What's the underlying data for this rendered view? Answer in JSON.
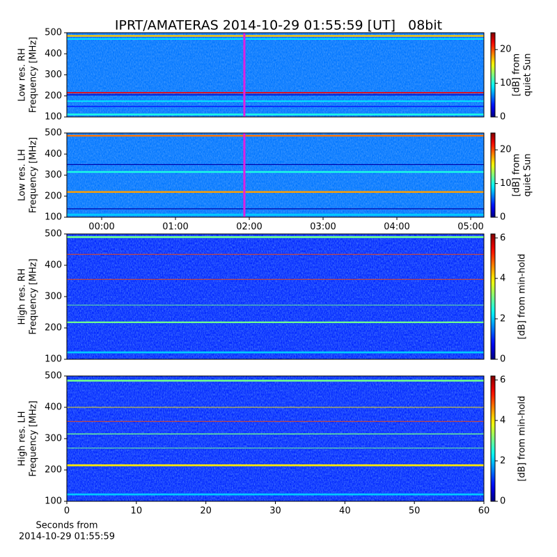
{
  "title": "IPRT/AMATERAS 2014-10-29 01:55:59 [UT]   08bit",
  "chart_data": [
    {
      "type": "spectrogram",
      "ylabel": [
        "Low res. RH",
        "Frequency [MHz]"
      ],
      "xlim": [
        -0.472,
        5.179
      ],
      "ylim": [
        100,
        500
      ],
      "yticks": [
        100,
        200,
        300,
        400,
        500
      ],
      "clim": [
        0,
        25
      ],
      "cticks": [
        0,
        10,
        20
      ],
      "clabel": [
        "[dB] from",
        "quiet Sun"
      ],
      "background_level": 6,
      "marker_x": 1.933,
      "marker_color": "#e020e0",
      "bands": [
        {
          "freq": 485,
          "width": 8,
          "level": 17
        },
        {
          "freq": 470,
          "width": 6,
          "level": 9
        },
        {
          "freq": 215,
          "width": 6,
          "level": 22
        },
        {
          "freq": 205,
          "width": 5,
          "level": 2
        },
        {
          "freq": 175,
          "width": 6,
          "level": 9
        },
        {
          "freq": 150,
          "width": 4,
          "level": 3
        },
        {
          "freq": 112,
          "width": 8,
          "level": 10
        }
      ]
    },
    {
      "type": "spectrogram",
      "ylabel": [
        "Low res. LH",
        "Frequency [MHz]"
      ],
      "xlim": [
        -0.472,
        5.179
      ],
      "ylim": [
        100,
        500
      ],
      "yticks": [
        100,
        200,
        300,
        400,
        500
      ],
      "xticks": [
        {
          "value": 0,
          "label": "00:00"
        },
        {
          "value": 1,
          "label": "01:00"
        },
        {
          "value": 2,
          "label": "02:00"
        },
        {
          "value": 3,
          "label": "03:00"
        },
        {
          "value": 4,
          "label": "04:00"
        },
        {
          "value": 5,
          "label": "05:00"
        }
      ],
      "clim": [
        0,
        25
      ],
      "cticks": [
        0,
        10,
        20
      ],
      "clabel": [
        "[dB] from",
        "quiet Sun"
      ],
      "background_level": 6,
      "marker_x": 1.933,
      "marker_color": "#e020e0",
      "bands": [
        {
          "freq": 487,
          "width": 8,
          "level": 19
        },
        {
          "freq": 350,
          "width": 4,
          "level": 1
        },
        {
          "freq": 315,
          "width": 8,
          "level": 10
        },
        {
          "freq": 220,
          "width": 8,
          "level": 18
        },
        {
          "freq": 140,
          "width": 4,
          "level": 1
        },
        {
          "freq": 112,
          "width": 10,
          "level": 8
        }
      ]
    },
    {
      "type": "spectrogram",
      "ylabel": [
        "High res. RH",
        "Frequency [MHz]"
      ],
      "xlim": [
        0,
        60
      ],
      "ylim": [
        100,
        500
      ],
      "yticks": [
        100,
        200,
        300,
        400,
        500
      ],
      "clim": [
        0,
        6.2
      ],
      "cticks": [
        0,
        2,
        4,
        6
      ],
      "clabel": [
        "[dB] from min-hold"
      ],
      "background_level": 1,
      "bands": [
        {
          "freq": 490,
          "width": 6,
          "level": 3
        },
        {
          "freq": 435,
          "width": 2,
          "level": 5
        },
        {
          "freq": 355,
          "width": 2,
          "level": 5
        },
        {
          "freq": 273,
          "width": 2,
          "level": 3
        },
        {
          "freq": 218,
          "width": 5,
          "level": 3
        },
        {
          "freq": 122,
          "width": 6,
          "level": 2
        }
      ]
    },
    {
      "type": "spectrogram",
      "ylabel": [
        "High res. LH",
        "Frequency [MHz]"
      ],
      "xlim": [
        0,
        60
      ],
      "ylim": [
        100,
        500
      ],
      "yticks": [
        100,
        200,
        300,
        400,
        500
      ],
      "xticks": [
        0,
        10,
        20,
        30,
        40,
        50,
        60
      ],
      "xlabel": [
        "Seconds from",
        "2014-10-29 01:55:59"
      ],
      "clim": [
        0,
        6.2
      ],
      "cticks": [
        0,
        2,
        4,
        6
      ],
      "clabel": [
        "[dB] from min-hold"
      ],
      "background_level": 1,
      "bands": [
        {
          "freq": 485,
          "width": 6,
          "level": 3
        },
        {
          "freq": 400,
          "width": 2,
          "level": 4
        },
        {
          "freq": 355,
          "width": 2,
          "level": 5
        },
        {
          "freq": 315,
          "width": 3,
          "level": 3
        },
        {
          "freq": 270,
          "width": 2,
          "level": 3
        },
        {
          "freq": 215,
          "width": 6,
          "level": 4
        },
        {
          "freq": 122,
          "width": 6,
          "level": 2
        }
      ]
    }
  ]
}
